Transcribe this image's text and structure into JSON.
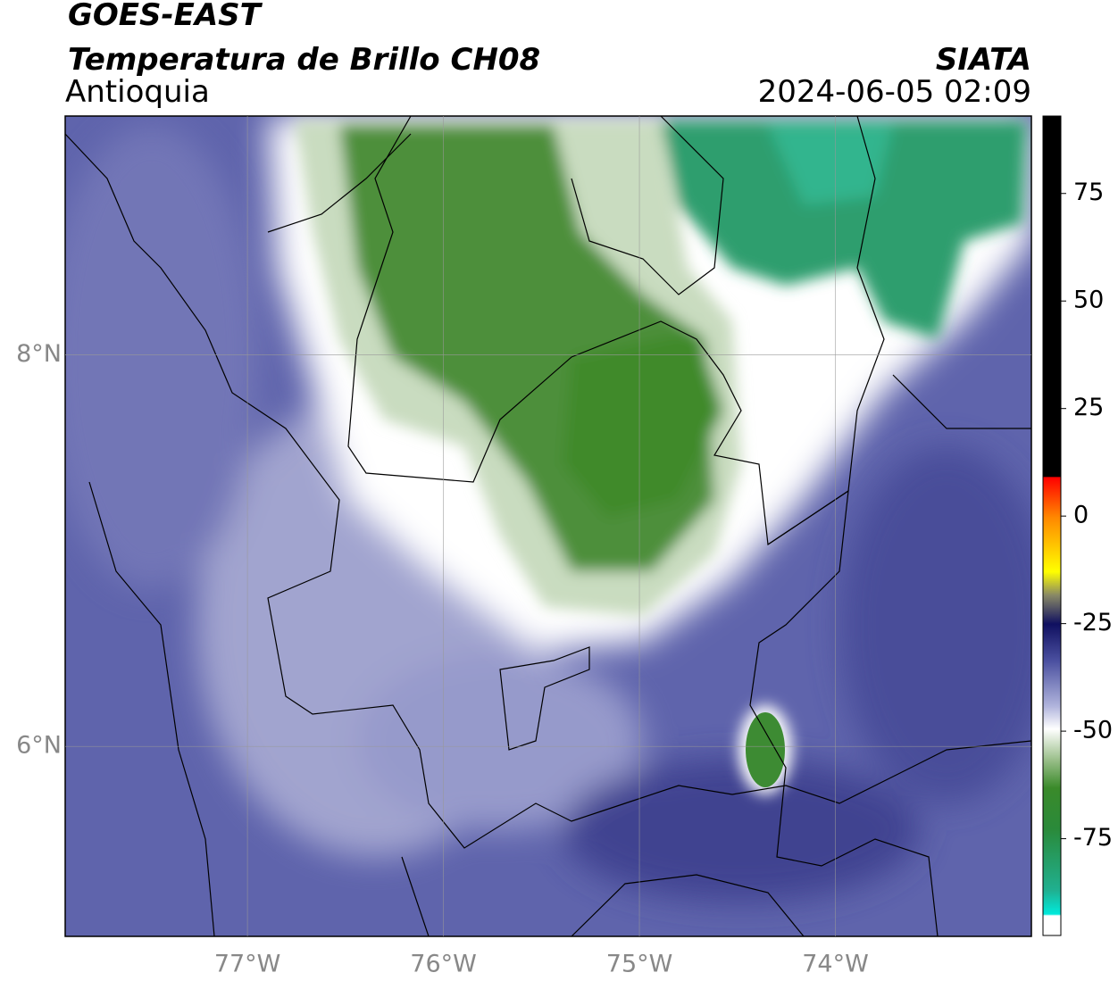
{
  "header": {
    "title": "GOES-EAST",
    "subtitle": "Temperatura de Brillo CH08",
    "region": "Antioquia",
    "source": "SIATA",
    "timestamp": "2024-06-05 02:09"
  },
  "map": {
    "lon_range": [
      -77.93,
      -73.0
    ],
    "lat_range": [
      5.03,
      9.22
    ],
    "lon_ticks": [
      {
        "value": -77,
        "label": "77°W"
      },
      {
        "value": -76,
        "label": "76°W"
      },
      {
        "value": -75,
        "label": "75°W"
      },
      {
        "value": -74,
        "label": "74°W"
      }
    ],
    "lat_ticks": [
      {
        "value": 8,
        "label": "8°N"
      },
      {
        "value": 6,
        "label": "6°N"
      }
    ],
    "grid": true
  },
  "colorbar": {
    "range": [
      -97.5,
      93
    ],
    "ticks": [
      75,
      50,
      25,
      0,
      -25,
      -50,
      -75
    ]
  }
}
